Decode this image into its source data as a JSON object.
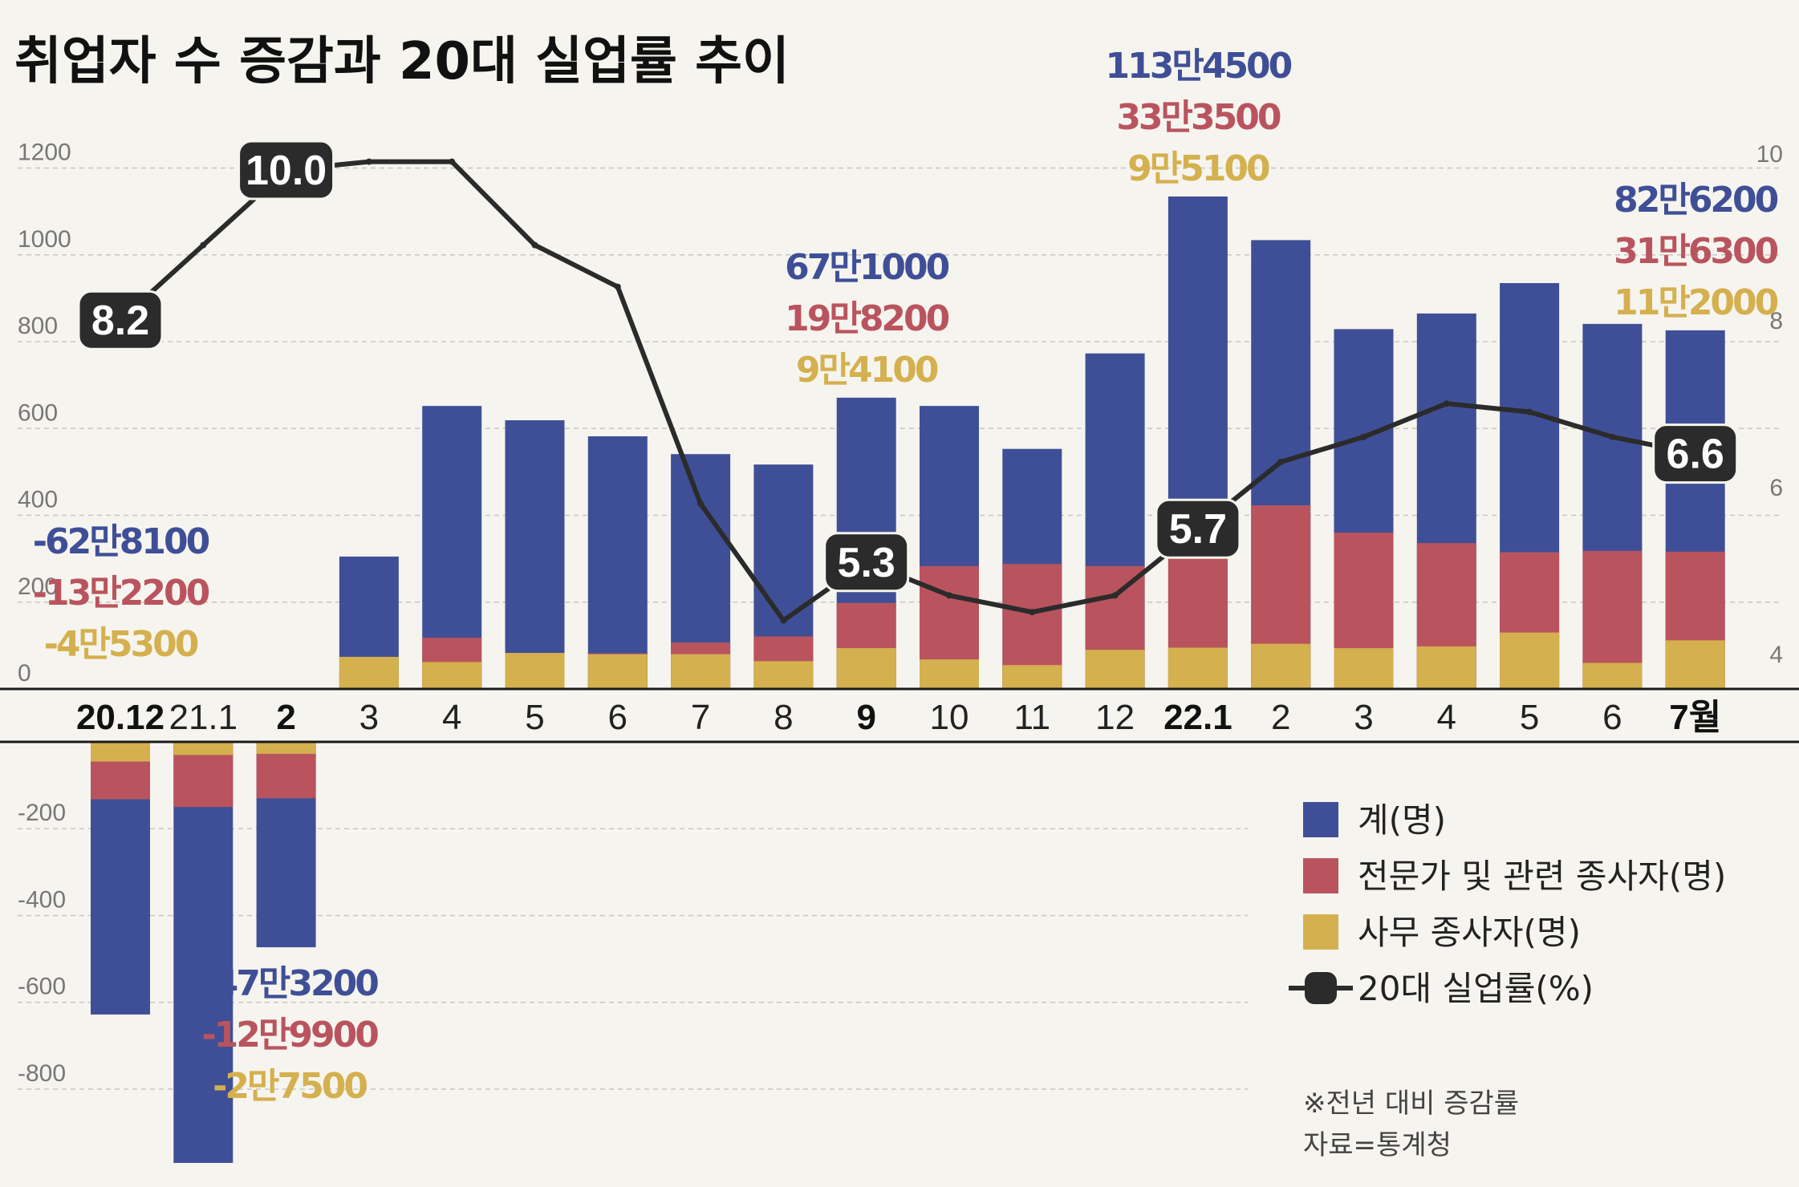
{
  "title": "취업자 수 증감과 20대 실업률 추이",
  "colors": {
    "total": "#3f4f97",
    "professional": "#b9545e",
    "office": "#d4b04e",
    "line": "#2b2b2b",
    "bubble": "#2b2b2b",
    "background": "#f6f4ee"
  },
  "chart_data": {
    "type": "bar",
    "categories": [
      "20.12",
      "21.1",
      "2",
      "3",
      "4",
      "5",
      "6",
      "7",
      "8",
      "9",
      "10",
      "11",
      "12",
      "22.1",
      "2",
      "3",
      "4",
      "5",
      "6",
      "7월"
    ],
    "bold_categories": [
      0,
      2,
      9,
      13,
      19
    ],
    "series": [
      {
        "name": "계(명)",
        "values": [
          -628.1,
          -970,
          -473.2,
          305,
          652,
          619,
          582,
          541,
          517,
          671,
          652,
          553,
          773,
          1134.5,
          1034,
          829,
          865,
          935,
          841,
          826.2
        ]
      },
      {
        "name": "전문가 및 관련 종사자(명)",
        "values": [
          -132.2,
          -150,
          -129.9,
          40,
          118,
          68,
          82,
          107,
          121,
          198.2,
          283,
          288,
          283,
          333.5,
          423,
          360,
          336,
          315,
          318,
          316.3
        ]
      },
      {
        "name": "사무 종사자(명)",
        "values": [
          -45.3,
          -30,
          -27.5,
          74,
          62,
          83,
          80,
          80,
          64,
          94.1,
          68,
          55,
          90,
          95.1,
          104,
          94,
          98,
          130,
          60,
          112
        ]
      },
      {
        "name": "20대 실업률(%)",
        "axis": "right",
        "values": [
          8.2,
          9.1,
          10.0,
          10.1,
          10.1,
          9.1,
          8.6,
          6.0,
          4.6,
          5.3,
          4.9,
          4.7,
          4.9,
          5.7,
          6.5,
          6.8,
          7.2,
          7.1,
          6.8,
          6.6
        ]
      }
    ],
    "y_left": {
      "ylim": [
        -1000,
        1200
      ],
      "ticks": [
        1200,
        1000,
        800,
        600,
        400,
        200,
        0,
        -200,
        -400,
        -600,
        -800
      ]
    },
    "y_right": {
      "ylim": [
        4,
        10
      ],
      "ticks": [
        10,
        8,
        6,
        4
      ]
    },
    "annotations": [
      {
        "index": 0,
        "lines": [
          "-62만8100",
          "-13만2200",
          "-4만5300"
        ]
      },
      {
        "index": 2,
        "lines": [
          "-47만3200",
          "-12만9900",
          "-2만7500"
        ]
      },
      {
        "index": 9,
        "lines": [
          "67만1000",
          "19만8200",
          "9만4100"
        ]
      },
      {
        "index": 13,
        "lines": [
          "113만4500",
          "33만3500",
          "9만5100"
        ]
      },
      {
        "index": 19,
        "lines": [
          "82만6200",
          "31만6300",
          "11만2000"
        ]
      }
    ],
    "rate_labels": [
      {
        "index": 0,
        "text": "8.2"
      },
      {
        "index": 2,
        "text": "10.0"
      },
      {
        "index": 9,
        "text": "5.3"
      },
      {
        "index": 13,
        "text": "5.7"
      },
      {
        "index": 19,
        "text": "6.6"
      }
    ],
    "legend_position": "bottom-right",
    "grid": true
  },
  "legend": [
    {
      "label": "계(명)",
      "color": "#3f4f97",
      "kind": "box"
    },
    {
      "label": "전문가 및 관련 종사자(명)",
      "color": "#b9545e",
      "kind": "box"
    },
    {
      "label": "사무 종사자(명)",
      "color": "#d4b04e",
      "kind": "box"
    },
    {
      "label": "20대 실업률(%)",
      "color": "#2b2b2b",
      "kind": "line"
    }
  ],
  "notes": {
    "line1": "※전년 대비 증감률",
    "line2": "자료=통계청"
  }
}
